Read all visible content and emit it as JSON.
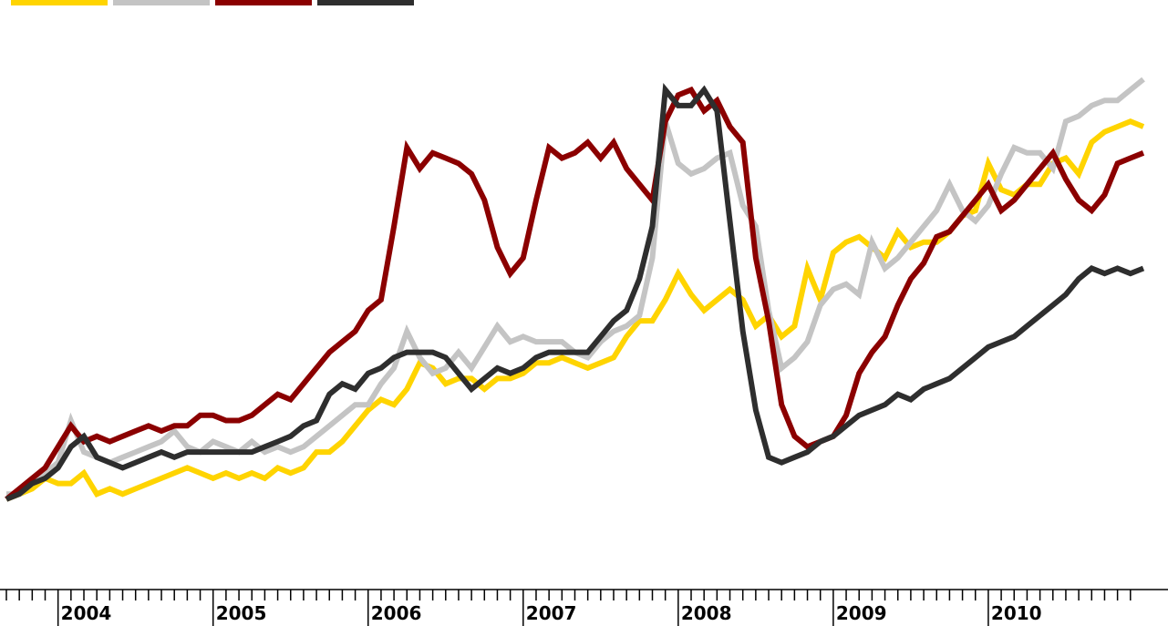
{
  "chart_data": {
    "type": "line",
    "title": "",
    "xlabel": "",
    "ylabel": "",
    "x_start": "2003-09",
    "x_step": "month",
    "xlim": [
      "2003-09",
      "2010-12"
    ],
    "ylim": [
      0,
      100
    ],
    "grid": false,
    "legend": "top-left",
    "x_tick_labels": [
      "2004",
      "2005",
      "2006",
      "2007",
      "2008",
      "2009",
      "2010"
    ],
    "series": [
      {
        "color": "#ffd400",
        "values": [
          8,
          9,
          10,
          12,
          11,
          11,
          13,
          9,
          10,
          9,
          10,
          11,
          12,
          13,
          14,
          13,
          12,
          13,
          12,
          13,
          12,
          14,
          13,
          14,
          17,
          17,
          19,
          22,
          25,
          27,
          26,
          29,
          34,
          33,
          30,
          31,
          31,
          29,
          31,
          31,
          32,
          34,
          34,
          35,
          34,
          33,
          34,
          35,
          39,
          42,
          42,
          46,
          51,
          47,
          44,
          46,
          48,
          46,
          41,
          43,
          39,
          41,
          52,
          46,
          55,
          57,
          58,
          56,
          54,
          59,
          56,
          57,
          57,
          59,
          62,
          63,
          72,
          67,
          66,
          68,
          68,
          72,
          73,
          70,
          76,
          78,
          79,
          80,
          79
        ]
      },
      {
        "color": "#c4c4c4",
        "values": [
          9,
          9,
          11,
          13,
          15,
          23,
          17,
          16,
          15,
          16,
          17,
          18,
          19,
          21,
          18,
          17,
          19,
          18,
          17,
          19,
          17,
          18,
          17,
          18,
          20,
          22,
          24,
          26,
          26,
          30,
          33,
          40,
          35,
          32,
          33,
          36,
          33,
          37,
          41,
          38,
          39,
          38,
          38,
          38,
          36,
          35,
          38,
          40,
          41,
          43,
          54,
          80,
          72,
          70,
          71,
          73,
          74,
          64,
          60,
          44,
          33,
          35,
          38,
          45,
          48,
          49,
          47,
          57,
          52,
          54,
          57,
          60,
          63,
          68,
          63,
          61,
          64,
          70,
          75,
          74,
          74,
          71,
          80,
          81,
          83,
          84,
          84,
          86,
          88
        ]
      },
      {
        "color": "#8b0000",
        "values": [
          8,
          10,
          12,
          14,
          18,
          22,
          19,
          20,
          19,
          20,
          21,
          22,
          21,
          22,
          22,
          24,
          24,
          23,
          23,
          24,
          26,
          28,
          27,
          30,
          33,
          36,
          38,
          40,
          44,
          46,
          60,
          75,
          71,
          74,
          73,
          72,
          70,
          65,
          56,
          51,
          54,
          65,
          75,
          73,
          74,
          76,
          73,
          76,
          71,
          68,
          65,
          80,
          85,
          86,
          82,
          84,
          79,
          76,
          54,
          42,
          26,
          20,
          18,
          19,
          20,
          24,
          32,
          36,
          39,
          45,
          50,
          53,
          58,
          59,
          62,
          65,
          68,
          63,
          65,
          68,
          71,
          74,
          69,
          65,
          63,
          66,
          72,
          73,
          74
        ]
      },
      {
        "color": "#2e2e2e",
        "values": [
          8,
          9,
          11,
          12,
          14,
          18,
          20,
          16,
          15,
          14,
          15,
          16,
          17,
          16,
          17,
          17,
          17,
          17,
          17,
          17,
          18,
          19,
          20,
          22,
          23,
          28,
          30,
          29,
          32,
          33,
          35,
          36,
          36,
          36,
          35,
          32,
          29,
          31,
          33,
          32,
          33,
          35,
          36,
          36,
          36,
          36,
          39,
          42,
          44,
          50,
          60,
          86,
          83,
          83,
          86,
          82,
          61,
          40,
          25,
          16,
          15,
          16,
          17,
          19,
          20,
          22,
          24,
          25,
          26,
          28,
          27,
          29,
          30,
          31,
          33,
          35,
          37,
          38,
          39,
          41,
          43,
          45,
          47,
          50,
          52,
          51,
          52,
          51,
          52
        ]
      }
    ]
  }
}
